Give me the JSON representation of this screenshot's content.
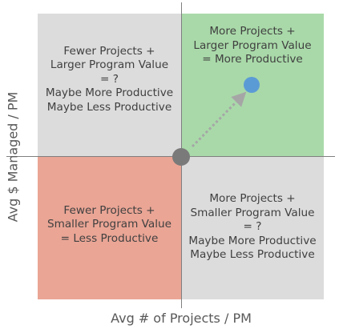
{
  "quadrants": {
    "top_left": {
      "lines": [
        "Fewer Projects +",
        "Larger Program Value",
        "= ?",
        "Maybe More Productive",
        "Maybe Less Productive"
      ],
      "color": "#dcdcdc"
    },
    "top_right": {
      "lines": [
        "More Projects +",
        "Larger Program Value",
        "= More Productive"
      ],
      "color": "#a9d9a9"
    },
    "bottom_left": {
      "lines": [
        "Fewer Projects +",
        "Smaller Program Value",
        "= Less Productive"
      ],
      "color": "#eaa595"
    },
    "bottom_right": {
      "lines": [
        "More Projects +",
        "Smaller Program Value",
        "= ?",
        "Maybe More Productive",
        "Maybe Less Productive"
      ],
      "color": "#dcdcdc"
    }
  },
  "axes": {
    "x_label": "Avg # of Projects / PM",
    "y_label": "Avg $ Managed / PM"
  },
  "markers": {
    "origin_color": "#7a7a7a",
    "target_color": "#5b9bd5",
    "arrow_color": "#a6a6a6"
  }
}
